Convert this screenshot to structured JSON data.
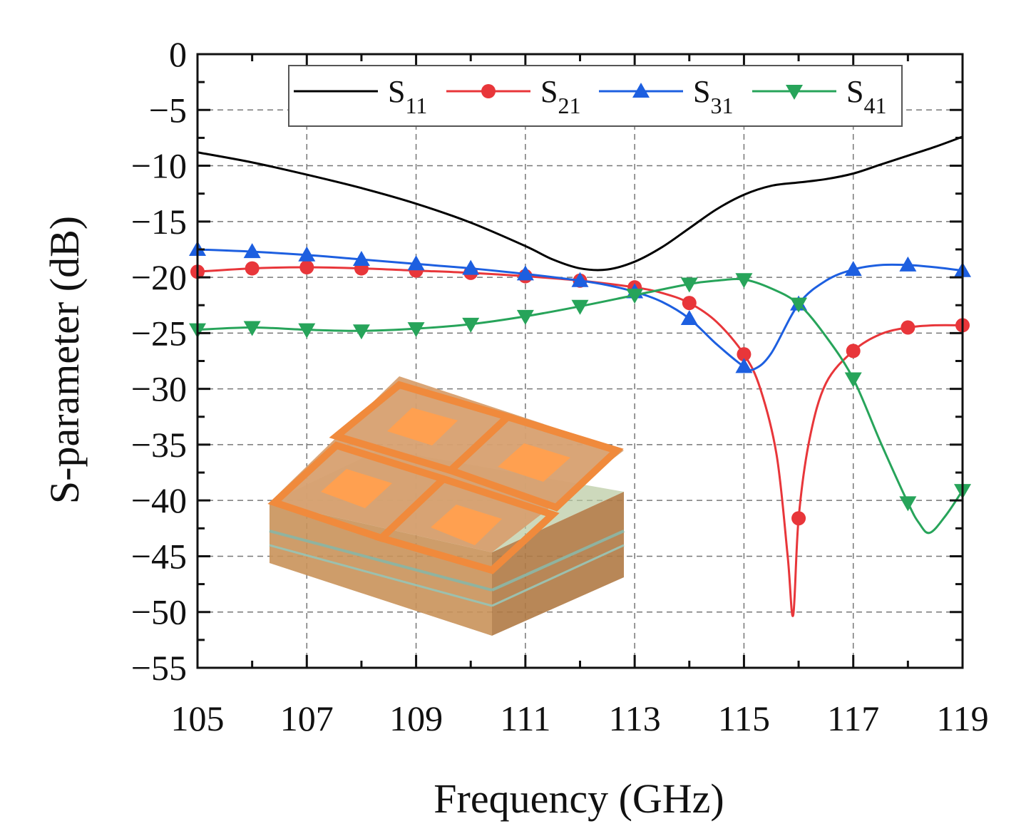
{
  "chart_data": {
    "type": "line",
    "title": "",
    "xlabel": "Frequency (GHz)",
    "ylabel": "S-parameter (dB)",
    "xlim": [
      105,
      119
    ],
    "ylim": [
      -55,
      0
    ],
    "xticks": [
      105,
      107,
      109,
      111,
      113,
      115,
      117,
      119
    ],
    "yticks": [
      0,
      -5,
      -10,
      -15,
      -20,
      -25,
      -30,
      -35,
      -40,
      -45,
      -50,
      -55
    ],
    "grid": true,
    "legend_position": "top",
    "inset": "3D model of 2x2 element unit cell",
    "series": [
      {
        "name": "S11",
        "sub": "11",
        "color": "#000000",
        "marker": "none",
        "x": [
          105,
          106,
          107,
          108,
          109,
          110,
          111,
          111.5,
          112,
          112.5,
          113,
          113.5,
          114,
          114.5,
          115,
          115.5,
          116,
          116.5,
          117,
          117.5,
          118,
          118.5,
          119
        ],
        "y": [
          -8.8,
          -9.7,
          -10.8,
          -12.0,
          -13.4,
          -15.1,
          -17.2,
          -18.4,
          -19.2,
          -19.3,
          -18.6,
          -17.3,
          -15.6,
          -13.9,
          -12.6,
          -11.8,
          -11.5,
          -11.2,
          -10.7,
          -9.9,
          -9.1,
          -8.3,
          -7.4
        ],
        "marker_x": [],
        "marker_y": []
      },
      {
        "name": "S21",
        "sub": "21",
        "color": "#e8363a",
        "marker": "circle",
        "x": [
          105,
          106,
          107,
          108,
          109,
          110,
          111,
          112,
          113,
          113.5,
          114,
          114.5,
          115,
          115.3,
          115.6,
          115.8,
          115.9,
          116,
          116.2,
          116.5,
          117,
          117.5,
          118,
          118.5,
          119
        ],
        "y": [
          -19.5,
          -19.2,
          -19.1,
          -19.2,
          -19.4,
          -19.6,
          -19.9,
          -20.3,
          -20.9,
          -21.4,
          -22.3,
          -24.0,
          -26.9,
          -30.0,
          -36.0,
          -45.0,
          -50.3,
          -41.6,
          -34.5,
          -29.5,
          -26.6,
          -25.1,
          -24.5,
          -24.3,
          -24.3
        ],
        "marker_x": [
          105,
          106,
          107,
          108,
          109,
          110,
          111,
          112,
          113,
          114,
          115,
          116,
          117,
          118,
          119
        ],
        "marker_y": [
          -19.5,
          -19.2,
          -19.1,
          -19.2,
          -19.4,
          -19.6,
          -19.9,
          -20.3,
          -20.9,
          -22.3,
          -26.9,
          -41.6,
          -26.6,
          -24.5,
          -24.3
        ]
      },
      {
        "name": "S31",
        "sub": "31",
        "color": "#1d5fe0",
        "marker": "triangle-up",
        "x": [
          105,
          106,
          107,
          108,
          109,
          110,
          111,
          112,
          112.5,
          113,
          113.5,
          114,
          114.5,
          115,
          115.2,
          115.5,
          116,
          116.5,
          117,
          117.5,
          118,
          118.5,
          119
        ],
        "y": [
          -17.5,
          -17.7,
          -18.0,
          -18.4,
          -18.8,
          -19.2,
          -19.7,
          -20.3,
          -20.7,
          -21.3,
          -22.2,
          -23.7,
          -26.0,
          -28.0,
          -28.2,
          -26.8,
          -22.4,
          -20.3,
          -19.3,
          -18.9,
          -18.9,
          -19.1,
          -19.4
        ],
        "marker_x": [
          105,
          106,
          107,
          108,
          109,
          110,
          111,
          112,
          113,
          114,
          115,
          116,
          117,
          118,
          119
        ],
        "marker_y": [
          -17.5,
          -17.7,
          -18.0,
          -18.4,
          -18.8,
          -19.2,
          -19.7,
          -20.3,
          -21.3,
          -23.7,
          -28.0,
          -22.4,
          -19.3,
          -18.9,
          -19.4
        ]
      },
      {
        "name": "S41",
        "sub": "41",
        "color": "#27a45a",
        "marker": "triangle-down",
        "x": [
          105,
          106,
          107,
          108,
          109,
          110,
          111,
          112,
          113,
          114,
          114.5,
          115,
          115.5,
          116,
          116.5,
          117,
          117.5,
          118,
          118.2,
          118.4,
          118.7,
          119
        ],
        "y": [
          -24.7,
          -24.5,
          -24.7,
          -24.8,
          -24.6,
          -24.2,
          -23.5,
          -22.6,
          -21.6,
          -20.6,
          -20.3,
          -20.2,
          -21.0,
          -22.4,
          -25.3,
          -29.1,
          -34.8,
          -40.2,
          -42.0,
          -42.9,
          -41.3,
          -39.1
        ],
        "marker_x": [
          105,
          106,
          107,
          108,
          109,
          110,
          111,
          112,
          113,
          114,
          115,
          116,
          117,
          118,
          119
        ],
        "marker_y": [
          -24.7,
          -24.5,
          -24.7,
          -24.8,
          -24.6,
          -24.2,
          -23.5,
          -22.6,
          -21.6,
          -20.6,
          -20.2,
          -22.4,
          -29.1,
          -40.2,
          -39.1
        ]
      }
    ]
  }
}
